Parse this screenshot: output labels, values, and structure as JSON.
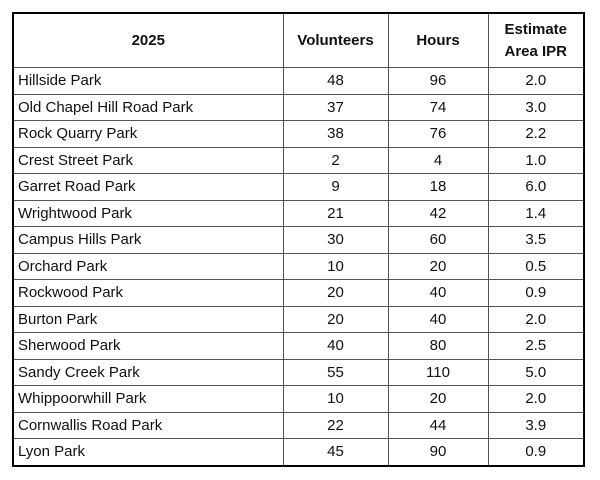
{
  "table": {
    "header": [
      "2025",
      "Volunteers",
      "Hours",
      "Estimate Area IPR"
    ],
    "rows": [
      [
        "Hillside Park",
        "48",
        "96",
        "2.0"
      ],
      [
        "Old Chapel Hill Road Park",
        "37",
        "74",
        "3.0"
      ],
      [
        "Rock Quarry Park",
        "38",
        "76",
        "2.2"
      ],
      [
        "Crest Street Park",
        "2",
        "4",
        "1.0"
      ],
      [
        "Garret Road Park",
        "9",
        "18",
        "6.0"
      ],
      [
        "Wrightwood Park",
        "21",
        "42",
        "1.4"
      ],
      [
        "Campus Hills Park",
        "30",
        "60",
        "3.5"
      ],
      [
        "Orchard Park",
        "10",
        "20",
        "0.5"
      ],
      [
        "Rockwood Park",
        "20",
        "40",
        "0.9"
      ],
      [
        "Burton Park",
        "20",
        "40",
        "2.0"
      ],
      [
        "Sherwood Park",
        "40",
        "80",
        "2.5"
      ],
      [
        "Sandy Creek Park",
        "55",
        "110",
        "5.0"
      ],
      [
        "Whippoorwhill Park",
        "10",
        "20",
        "2.0"
      ],
      [
        "Cornwallis Road Park",
        "22",
        "44",
        "3.9"
      ],
      [
        "Lyon Park",
        "45",
        "90",
        "0.9"
      ]
    ]
  }
}
